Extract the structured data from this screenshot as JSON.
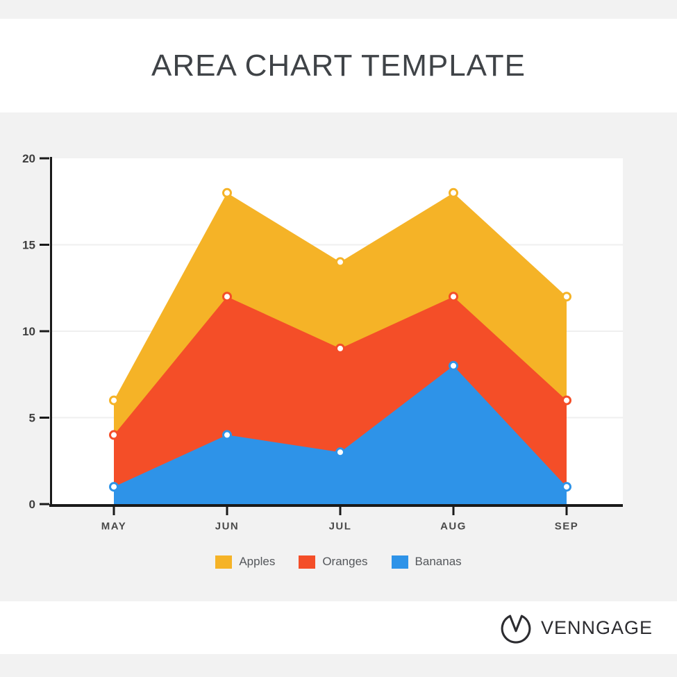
{
  "page": {
    "title": "AREA CHART TEMPLATE"
  },
  "brand": {
    "name": "VENNGAGE",
    "logo_icon": "venngage-circle-v-icon"
  },
  "chart_data": {
    "type": "area",
    "stacked_appearance": "overlapping areas drawn Apples(back), Oranges(mid), Bananas(front)",
    "x": [
      "MAY",
      "JUN",
      "JUL",
      "AUG",
      "SEP"
    ],
    "series": [
      {
        "name": "Apples",
        "color": "#F5B327",
        "values": [
          6,
          18,
          14,
          18,
          12
        ]
      },
      {
        "name": "Oranges",
        "color": "#F44E28",
        "values": [
          4,
          12,
          9,
          12,
          6
        ]
      },
      {
        "name": "Bananas",
        "color": "#2E93E8",
        "values": [
          1,
          4,
          3,
          8,
          1
        ]
      }
    ],
    "ylim": [
      0,
      20
    ],
    "yticks": [
      0,
      5,
      10,
      15,
      20
    ],
    "grid": true,
    "legend_position": "bottom",
    "marker_style": "white-filled circle with series-color ring"
  },
  "colors": {
    "page_background": "#F2F2F2",
    "plot_background": "#FFFFFF",
    "axis": "#1A1A1A",
    "gridline": "#EFEFEF",
    "y_tick_label": "#3E3E3E",
    "x_tick_label": "#4A4A4A",
    "title_text": "#3F4347",
    "legend_text": "#54575B",
    "brand_text": "#2C2C30"
  }
}
